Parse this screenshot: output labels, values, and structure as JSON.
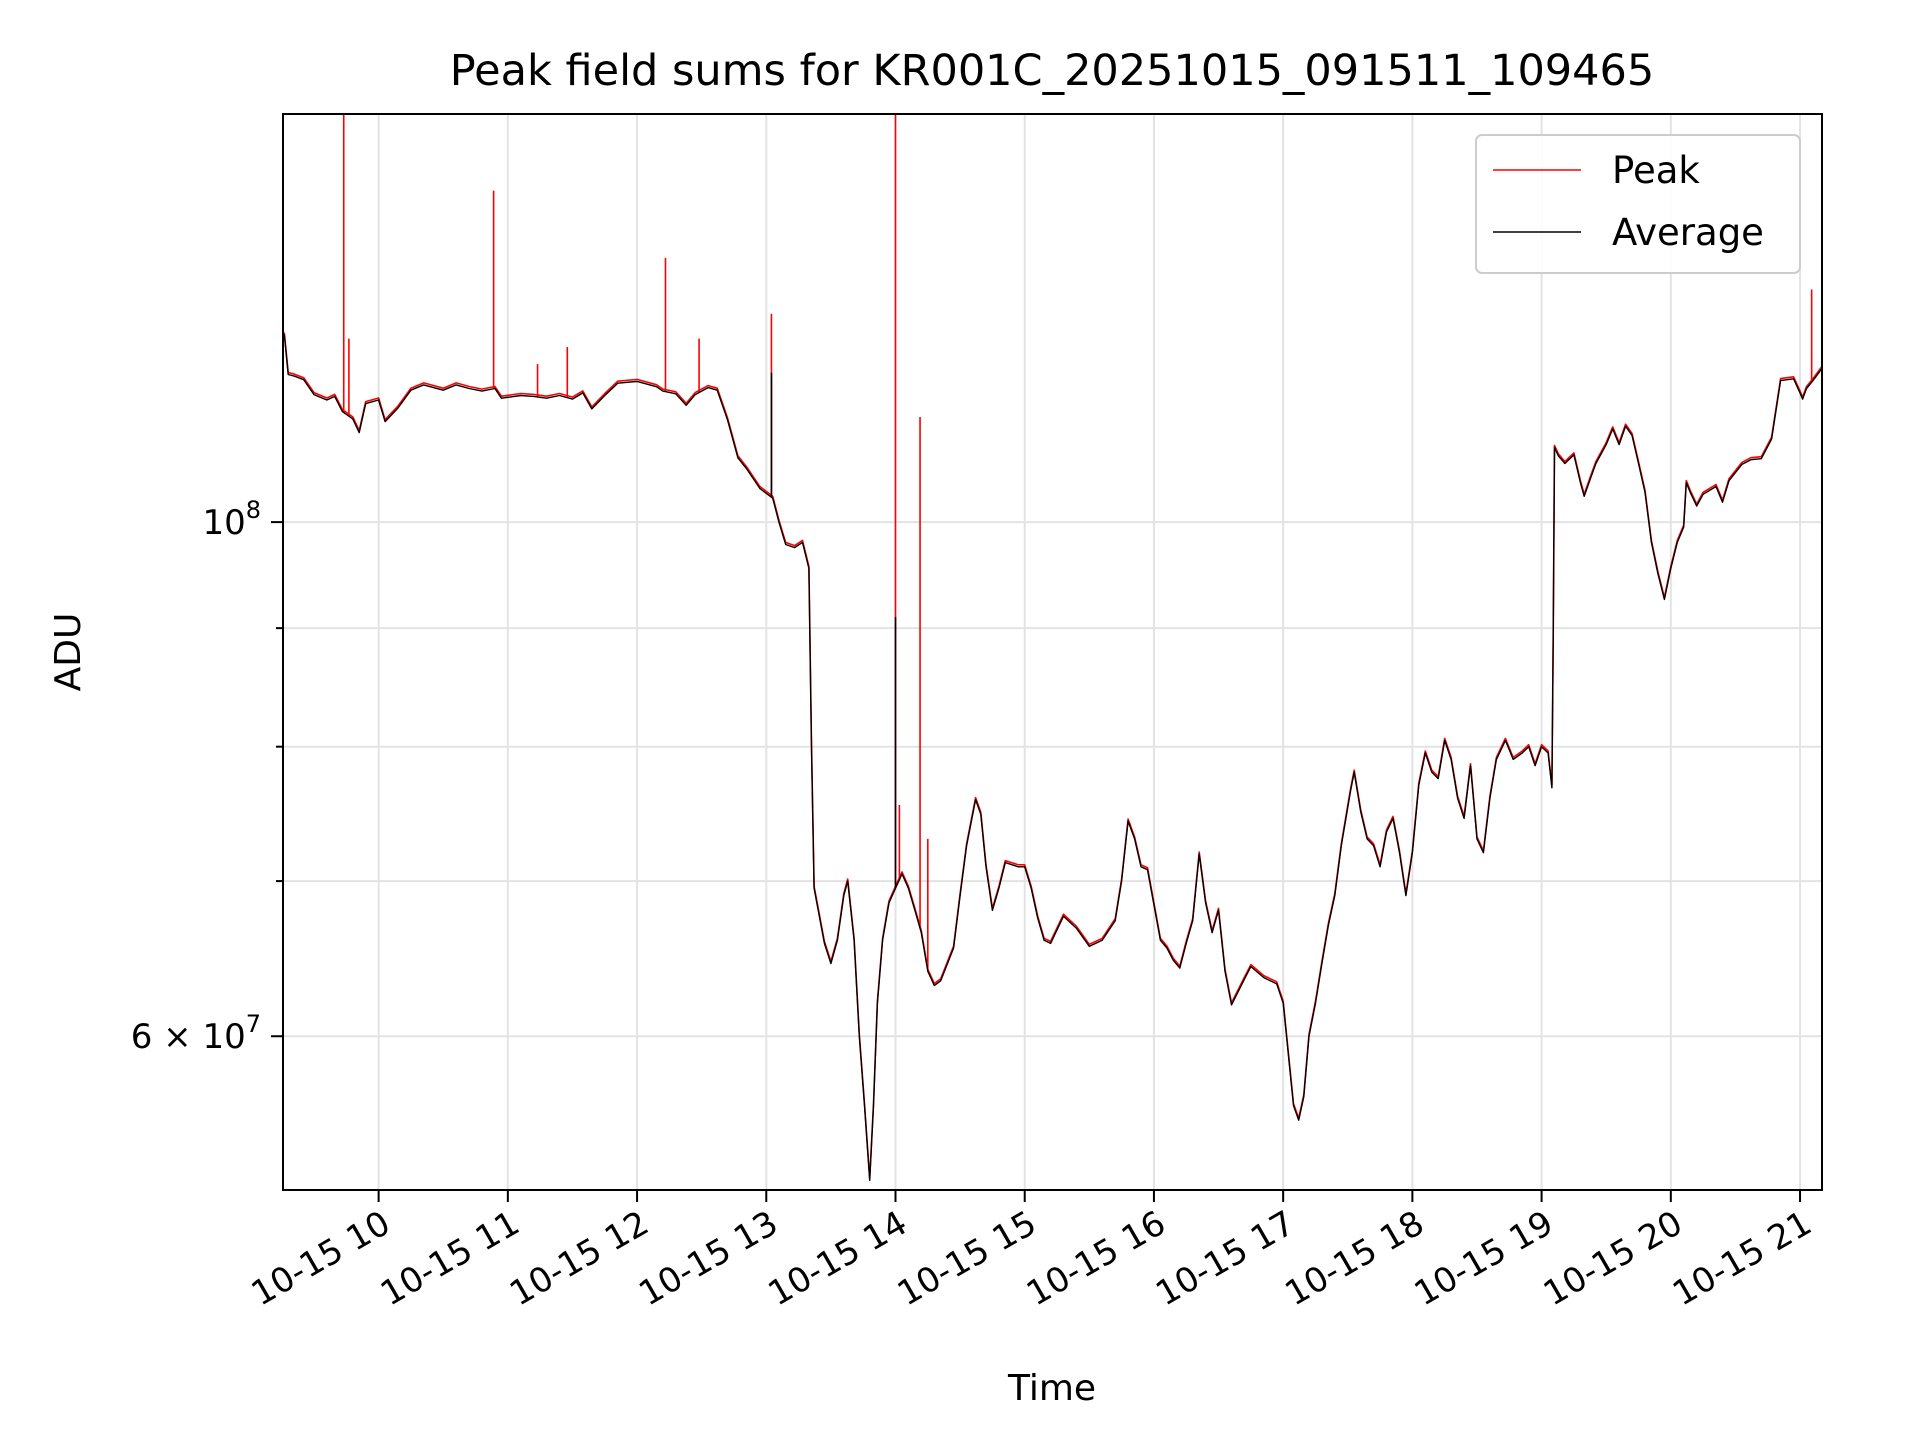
{
  "chart_data": {
    "type": "line",
    "title": "Peak field sums for KR001C_20251015_091511_109465",
    "xlabel": "Time",
    "ylabel": "ADU",
    "yscale": "log",
    "ylim": [
      51500000,
      150000000
    ],
    "x_tick_labels": [
      "10-15 10",
      "10-15 11",
      "10-15 12",
      "10-15 13",
      "10-15 14",
      "10-15 15",
      "10-15 16",
      "10-15 17",
      "10-15 18",
      "10-15 19",
      "10-15 20",
      "10-15 21"
    ],
    "x_tick_hours": [
      10,
      11,
      12,
      13,
      14,
      15,
      16,
      17,
      18,
      19,
      20,
      21
    ],
    "xlim_hours": [
      9.26,
      21.17
    ],
    "y_major_ticks": [
      {
        "value": 100000000,
        "base": "10",
        "exp": "8",
        "mant": ""
      },
      {
        "value": 60000000,
        "base": "10",
        "exp": "7",
        "mant": "6"
      }
    ],
    "y_minor_ticks": [
      70000000,
      80000000,
      90000000
    ],
    "grid": true,
    "legend_position": "top-right",
    "series": [
      {
        "name": "Peak",
        "color": "#ff0000"
      },
      {
        "name": "Average",
        "color": "#000000"
      }
    ],
    "average_points": [
      [
        9.27,
        120500000
      ],
      [
        9.3,
        115800000
      ],
      [
        9.35,
        115600000
      ],
      [
        9.42,
        115200000
      ],
      [
        9.5,
        113500000
      ],
      [
        9.6,
        112900000
      ],
      [
        9.66,
        113300000
      ],
      [
        9.72,
        111600000
      ],
      [
        9.8,
        110800000
      ],
      [
        9.85,
        109300000
      ],
      [
        9.9,
        112500000
      ],
      [
        10.0,
        112900000
      ],
      [
        10.05,
        110500000
      ],
      [
        10.15,
        112000000
      ],
      [
        10.25,
        114000000
      ],
      [
        10.35,
        114600000
      ],
      [
        10.5,
        114000000
      ],
      [
        10.6,
        114600000
      ],
      [
        10.7,
        114200000
      ],
      [
        10.8,
        113900000
      ],
      [
        10.9,
        114200000
      ],
      [
        10.95,
        113100000
      ],
      [
        11.1,
        113400000
      ],
      [
        11.2,
        113300000
      ],
      [
        11.3,
        113100000
      ],
      [
        11.4,
        113400000
      ],
      [
        11.5,
        113000000
      ],
      [
        11.58,
        113700000
      ],
      [
        11.65,
        111900000
      ],
      [
        11.75,
        113400000
      ],
      [
        11.85,
        114800000
      ],
      [
        12.0,
        115000000
      ],
      [
        12.15,
        114400000
      ],
      [
        12.2,
        113900000
      ],
      [
        12.3,
        113600000
      ],
      [
        12.38,
        112300000
      ],
      [
        12.45,
        113500000
      ],
      [
        12.55,
        114300000
      ],
      [
        12.62,
        114000000
      ],
      [
        12.7,
        110700000
      ],
      [
        12.78,
        106600000
      ],
      [
        12.85,
        105400000
      ],
      [
        12.95,
        103400000
      ],
      [
        13.05,
        102400000
      ],
      [
        13.1,
        99900000
      ],
      [
        13.15,
        97800000
      ],
      [
        13.22,
        97500000
      ],
      [
        13.28,
        98000000
      ],
      [
        13.33,
        95500000
      ],
      [
        13.35,
        80000000
      ],
      [
        13.37,
        69500000
      ],
      [
        13.45,
        65800000
      ],
      [
        13.5,
        64500000
      ],
      [
        13.55,
        66000000
      ],
      [
        13.6,
        69000000
      ],
      [
        13.63,
        70000000
      ],
      [
        13.68,
        66000000
      ],
      [
        13.72,
        60000000
      ],
      [
        13.76,
        56000000
      ],
      [
        13.8,
        52000000
      ],
      [
        13.83,
        56000000
      ],
      [
        13.86,
        62000000
      ],
      [
        13.9,
        66000000
      ],
      [
        13.95,
        68500000
      ],
      [
        14.0,
        69500000
      ],
      [
        14.05,
        70500000
      ],
      [
        14.1,
        69500000
      ],
      [
        14.15,
        68000000
      ],
      [
        14.2,
        66500000
      ],
      [
        14.25,
        64000000
      ],
      [
        14.3,
        63100000
      ],
      [
        14.35,
        63400000
      ],
      [
        14.45,
        65500000
      ],
      [
        14.5,
        69000000
      ],
      [
        14.55,
        72500000
      ],
      [
        14.62,
        75900000
      ],
      [
        14.66,
        74800000
      ],
      [
        14.7,
        71000000
      ],
      [
        14.75,
        68000000
      ],
      [
        14.8,
        69500000
      ],
      [
        14.85,
        71300000
      ],
      [
        14.95,
        71000000
      ],
      [
        15.0,
        71000000
      ],
      [
        15.05,
        69500000
      ],
      [
        15.1,
        67500000
      ],
      [
        15.15,
        66000000
      ],
      [
        15.2,
        65800000
      ],
      [
        15.3,
        67600000
      ],
      [
        15.4,
        66800000
      ],
      [
        15.5,
        65600000
      ],
      [
        15.6,
        66000000
      ],
      [
        15.7,
        67300000
      ],
      [
        15.75,
        70000000
      ],
      [
        15.8,
        74300000
      ],
      [
        15.85,
        73000000
      ],
      [
        15.9,
        71000000
      ],
      [
        15.95,
        70800000
      ],
      [
        16.05,
        66000000
      ],
      [
        16.1,
        65500000
      ],
      [
        16.15,
        64700000
      ],
      [
        16.2,
        64200000
      ],
      [
        16.25,
        65800000
      ],
      [
        16.3,
        67300000
      ],
      [
        16.35,
        71900000
      ],
      [
        16.4,
        68500000
      ],
      [
        16.45,
        66500000
      ],
      [
        16.5,
        68000000
      ],
      [
        16.55,
        64000000
      ],
      [
        16.6,
        61900000
      ],
      [
        16.7,
        63500000
      ],
      [
        16.75,
        64300000
      ],
      [
        16.85,
        63600000
      ],
      [
        16.95,
        63200000
      ],
      [
        17.0,
        62000000
      ],
      [
        17.08,
        56000000
      ],
      [
        17.12,
        55200000
      ],
      [
        17.16,
        56500000
      ],
      [
        17.2,
        60000000
      ],
      [
        17.25,
        62000000
      ],
      [
        17.3,
        64500000
      ],
      [
        17.35,
        67000000
      ],
      [
        17.4,
        69000000
      ],
      [
        17.45,
        72500000
      ],
      [
        17.52,
        76500000
      ],
      [
        17.55,
        78000000
      ],
      [
        17.6,
        75000000
      ],
      [
        17.65,
        73000000
      ],
      [
        17.7,
        72500000
      ],
      [
        17.75,
        71000000
      ],
      [
        17.8,
        73500000
      ],
      [
        17.85,
        74500000
      ],
      [
        17.9,
        72000000
      ],
      [
        17.95,
        69000000
      ],
      [
        18.0,
        72000000
      ],
      [
        18.05,
        77000000
      ],
      [
        18.1,
        79500000
      ],
      [
        18.15,
        78000000
      ],
      [
        18.2,
        77500000
      ],
      [
        18.25,
        80500000
      ],
      [
        18.3,
        79000000
      ],
      [
        18.35,
        76000000
      ],
      [
        18.4,
        74500000
      ],
      [
        18.45,
        78500000
      ],
      [
        18.5,
        73000000
      ],
      [
        18.55,
        72000000
      ],
      [
        18.6,
        76000000
      ],
      [
        18.65,
        79000000
      ],
      [
        18.72,
        80500000
      ],
      [
        18.78,
        79000000
      ],
      [
        18.85,
        79500000
      ],
      [
        18.9,
        80000000
      ],
      [
        18.95,
        78500000
      ],
      [
        19.0,
        80000000
      ],
      [
        19.05,
        79500000
      ],
      [
        19.08,
        76800000
      ],
      [
        19.09,
        89000000
      ],
      [
        19.1,
        107700000
      ],
      [
        19.13,
        106800000
      ],
      [
        19.18,
        106000000
      ],
      [
        19.25,
        106900000
      ],
      [
        19.3,
        104000000
      ],
      [
        19.33,
        102600000
      ],
      [
        19.38,
        104500000
      ],
      [
        19.42,
        106000000
      ],
      [
        19.5,
        108000000
      ],
      [
        19.55,
        109700000
      ],
      [
        19.6,
        108000000
      ],
      [
        19.65,
        110000000
      ],
      [
        19.7,
        109000000
      ],
      [
        19.75,
        106000000
      ],
      [
        19.8,
        103000000
      ],
      [
        19.85,
        98000000
      ],
      [
        19.9,
        95000000
      ],
      [
        19.95,
        92600000
      ],
      [
        20.0,
        95500000
      ],
      [
        20.05,
        98000000
      ],
      [
        20.1,
        99500000
      ],
      [
        20.12,
        104000000
      ],
      [
        20.15,
        103000000
      ],
      [
        20.2,
        101600000
      ],
      [
        20.25,
        102800000
      ],
      [
        20.35,
        103600000
      ],
      [
        20.4,
        102000000
      ],
      [
        20.45,
        104200000
      ],
      [
        20.55,
        105900000
      ],
      [
        20.62,
        106400000
      ],
      [
        20.7,
        106500000
      ],
      [
        20.78,
        108600000
      ],
      [
        20.85,
        115100000
      ],
      [
        20.95,
        115300000
      ],
      [
        21.0,
        113700000
      ],
      [
        21.02,
        113000000
      ],
      [
        21.05,
        114200000
      ],
      [
        21.1,
        115100000
      ],
      [
        21.17,
        116500000
      ]
    ],
    "peak_spikes": [
      [
        9.73,
        150000000
      ],
      [
        9.77,
        120000000
      ],
      [
        10.89,
        139000000
      ],
      [
        11.23,
        117000000
      ],
      [
        11.46,
        119000000
      ],
      [
        12.22,
        130000000
      ],
      [
        12.48,
        120000000
      ],
      [
        13.04,
        123000000
      ],
      [
        14.0,
        150000000
      ],
      [
        14.03,
        75500000
      ],
      [
        14.19,
        111000000
      ],
      [
        14.25,
        73000000
      ],
      [
        21.09,
        126000000
      ]
    ],
    "average_spikes": [
      [
        13.04,
        116000000
      ],
      [
        14.0,
        91000000
      ]
    ]
  }
}
